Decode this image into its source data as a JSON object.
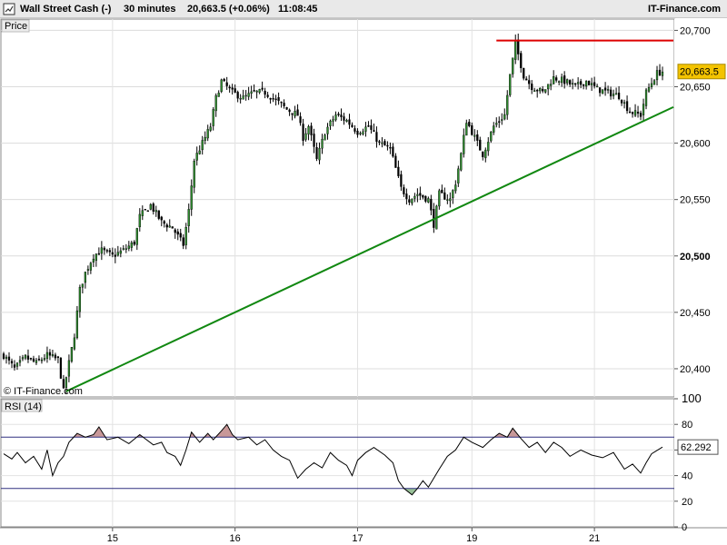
{
  "header": {
    "instrument": "Wall Street Cash (-)",
    "timeframe": "30 minutes",
    "last_change": "20,663.5 (+0.06%)",
    "time": "11:08:45",
    "brand": "IT-Finance.com"
  },
  "price_panel": {
    "label": "Price",
    "copyright": "© IT-Finance.com",
    "last_price_label": "20,663.5",
    "last_price_color": "#f3c300"
  },
  "rsi_panel": {
    "label": "RSI (14)",
    "value_label": "62.292"
  },
  "colors": {
    "up_candle": "#2e8b2e",
    "down_candle": "#000000",
    "resistance": "#dd0000",
    "trendline": "#118811",
    "rsi_band": "#303080",
    "rsi_overbought_fill": "#c89898",
    "rsi_oversold_fill": "#98c098"
  },
  "chart_data": [
    {
      "type": "candlestick",
      "title": "Wall Street Cash (-) 30 minutes",
      "ylim": [
        20375,
        20710
      ],
      "y_ticks": [
        20400,
        20450,
        20500,
        20550,
        20600,
        20650,
        20700
      ],
      "y_tick_labels": [
        "20,400",
        "20,450",
        "20,500",
        "20,550",
        "20,600",
        "20,650",
        "20,700"
      ],
      "x_ticks": [
        {
          "label": "15",
          "index": 40
        },
        {
          "label": "16",
          "index": 85
        },
        {
          "label": "17",
          "index": 130
        },
        {
          "label": "19",
          "index": 172
        },
        {
          "label": "21",
          "index": 217
        }
      ],
      "x_range": [
        0,
        246
      ],
      "path_points": [
        [
          0,
          20412
        ],
        [
          4,
          20400
        ],
        [
          8,
          20410
        ],
        [
          12,
          20405
        ],
        [
          16,
          20412
        ],
        [
          20,
          20408
        ],
        [
          22,
          20380
        ],
        [
          26,
          20430
        ],
        [
          28,
          20470
        ],
        [
          30,
          20485
        ],
        [
          33,
          20500
        ],
        [
          36,
          20505
        ],
        [
          40,
          20500
        ],
        [
          44,
          20505
        ],
        [
          48,
          20512
        ],
        [
          50,
          20535
        ],
        [
          54,
          20545
        ],
        [
          58,
          20530
        ],
        [
          62,
          20525
        ],
        [
          66,
          20510
        ],
        [
          68,
          20540
        ],
        [
          70,
          20585
        ],
        [
          73,
          20600
        ],
        [
          76,
          20615
        ],
        [
          78,
          20640
        ],
        [
          80,
          20655
        ],
        [
          84,
          20645
        ],
        [
          88,
          20640
        ],
        [
          92,
          20645
        ],
        [
          96,
          20645
        ],
        [
          100,
          20638
        ],
        [
          104,
          20630
        ],
        [
          108,
          20625
        ],
        [
          110,
          20605
        ],
        [
          112,
          20615
        ],
        [
          115,
          20585
        ],
        [
          118,
          20610
        ],
        [
          122,
          20625
        ],
        [
          126,
          20620
        ],
        [
          130,
          20610
        ],
        [
          134,
          20615
        ],
        [
          138,
          20600
        ],
        [
          142,
          20595
        ],
        [
          146,
          20560
        ],
        [
          149,
          20550
        ],
        [
          152,
          20555
        ],
        [
          156,
          20550
        ],
        [
          158,
          20528
        ],
        [
          160,
          20555
        ],
        [
          164,
          20550
        ],
        [
          166,
          20565
        ],
        [
          168,
          20590
        ],
        [
          170,
          20620
        ],
        [
          172,
          20610
        ],
        [
          176,
          20590
        ],
        [
          180,
          20615
        ],
        [
          184,
          20625
        ],
        [
          186,
          20660
        ],
        [
          188,
          20688
        ],
        [
          191,
          20660
        ],
        [
          194,
          20650
        ],
        [
          198,
          20645
        ],
        [
          202,
          20658
        ],
        [
          206,
          20655
        ],
        [
          210,
          20650
        ],
        [
          214,
          20655
        ],
        [
          218,
          20648
        ],
        [
          222,
          20645
        ],
        [
          226,
          20642
        ],
        [
          230,
          20628
        ],
        [
          234,
          20625
        ],
        [
          236,
          20645
        ],
        [
          240,
          20662
        ],
        [
          242,
          20663.5
        ]
      ],
      "last_value": 20663.5,
      "resistance_line": {
        "value": 20691,
        "x_start": 181,
        "x_end": 246
      },
      "trend_line": {
        "start": [
          23,
          20380
        ],
        "end": [
          246,
          20632
        ]
      }
    },
    {
      "type": "line",
      "title": "RSI (14)",
      "ylim": [
        0,
        100
      ],
      "y_ticks": [
        0,
        20,
        40,
        60,
        80,
        100
      ],
      "overbought": 70,
      "oversold": 30,
      "points": [
        [
          0,
          57
        ],
        [
          3,
          53
        ],
        [
          5,
          58
        ],
        [
          8,
          50
        ],
        [
          11,
          55
        ],
        [
          14,
          45
        ],
        [
          16,
          60
        ],
        [
          18,
          40
        ],
        [
          20,
          50
        ],
        [
          22,
          55
        ],
        [
          24,
          66
        ],
        [
          27,
          73
        ],
        [
          30,
          70
        ],
        [
          33,
          72
        ],
        [
          35,
          78
        ],
        [
          38,
          68
        ],
        [
          42,
          70
        ],
        [
          46,
          65
        ],
        [
          50,
          72
        ],
        [
          55,
          64
        ],
        [
          58,
          66
        ],
        [
          60,
          58
        ],
        [
          63,
          55
        ],
        [
          65,
          48
        ],
        [
          67,
          60
        ],
        [
          69,
          74
        ],
        [
          72,
          66
        ],
        [
          75,
          73
        ],
        [
          77,
          68
        ],
        [
          80,
          75
        ],
        [
          82,
          80
        ],
        [
          84,
          72
        ],
        [
          86,
          68
        ],
        [
          90,
          70
        ],
        [
          93,
          64
        ],
        [
          96,
          68
        ],
        [
          99,
          60
        ],
        [
          102,
          55
        ],
        [
          105,
          52
        ],
        [
          108,
          38
        ],
        [
          111,
          45
        ],
        [
          114,
          50
        ],
        [
          117,
          46
        ],
        [
          120,
          58
        ],
        [
          123,
          52
        ],
        [
          126,
          48
        ],
        [
          128,
          40
        ],
        [
          130,
          52
        ],
        [
          133,
          58
        ],
        [
          136,
          62
        ],
        [
          140,
          56
        ],
        [
          143,
          50
        ],
        [
          145,
          36
        ],
        [
          147,
          30
        ],
        [
          150,
          25
        ],
        [
          152,
          30
        ],
        [
          154,
          36
        ],
        [
          156,
          31
        ],
        [
          158,
          38
        ],
        [
          160,
          45
        ],
        [
          163,
          55
        ],
        [
          166,
          60
        ],
        [
          169,
          70
        ],
        [
          172,
          66
        ],
        [
          176,
          62
        ],
        [
          179,
          68
        ],
        [
          182,
          73
        ],
        [
          185,
          70
        ],
        [
          187,
          77
        ],
        [
          190,
          69
        ],
        [
          193,
          62
        ],
        [
          196,
          66
        ],
        [
          199,
          58
        ],
        [
          202,
          66
        ],
        [
          205,
          62
        ],
        [
          208,
          55
        ],
        [
          212,
          60
        ],
        [
          216,
          56
        ],
        [
          220,
          54
        ],
        [
          224,
          58
        ],
        [
          228,
          45
        ],
        [
          231,
          49
        ],
        [
          234,
          42
        ],
        [
          236,
          50
        ],
        [
          238,
          57
        ],
        [
          242,
          62.3
        ]
      ]
    }
  ]
}
